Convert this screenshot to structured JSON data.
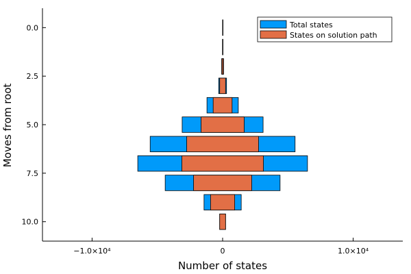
{
  "chart_data": {
    "type": "bar",
    "orientation": "horizontal",
    "layout": "butterfly-symmetric",
    "xlabel": "Number of states",
    "ylabel": "Moves from root",
    "xlim": [
      -13800,
      13800
    ],
    "ylim": [
      -1,
      11
    ],
    "y_inverted": true,
    "x_ticks": [
      {
        "value": -10000,
        "label": "−1.0×10⁴"
      },
      {
        "value": 0,
        "label": "0"
      },
      {
        "value": 10000,
        "label": "1.0×10⁴"
      }
    ],
    "y_ticks": [
      {
        "value": 0,
        "label": "0.0"
      },
      {
        "value": 2.5,
        "label": "2.5"
      },
      {
        "value": 5,
        "label": "5.0"
      },
      {
        "value": 7.5,
        "label": "7.5"
      },
      {
        "value": 10,
        "label": "10.0"
      }
    ],
    "grid": false,
    "legend_position": "top-right",
    "moves": [
      0,
      1,
      2,
      3,
      4,
      5,
      6,
      7,
      8,
      9,
      10
    ],
    "series": [
      {
        "name": "Total states",
        "color": "#009AFA",
        "values": [
          1,
          20,
          150,
          600,
          2400,
          6200,
          11100,
          13000,
          8800,
          2850,
          450
        ]
      },
      {
        "name": "States on solution path",
        "color": "#E26F46",
        "values": [
          1,
          10,
          100,
          450,
          1450,
          3300,
          5500,
          6250,
          4450,
          1850,
          450
        ]
      }
    ]
  }
}
